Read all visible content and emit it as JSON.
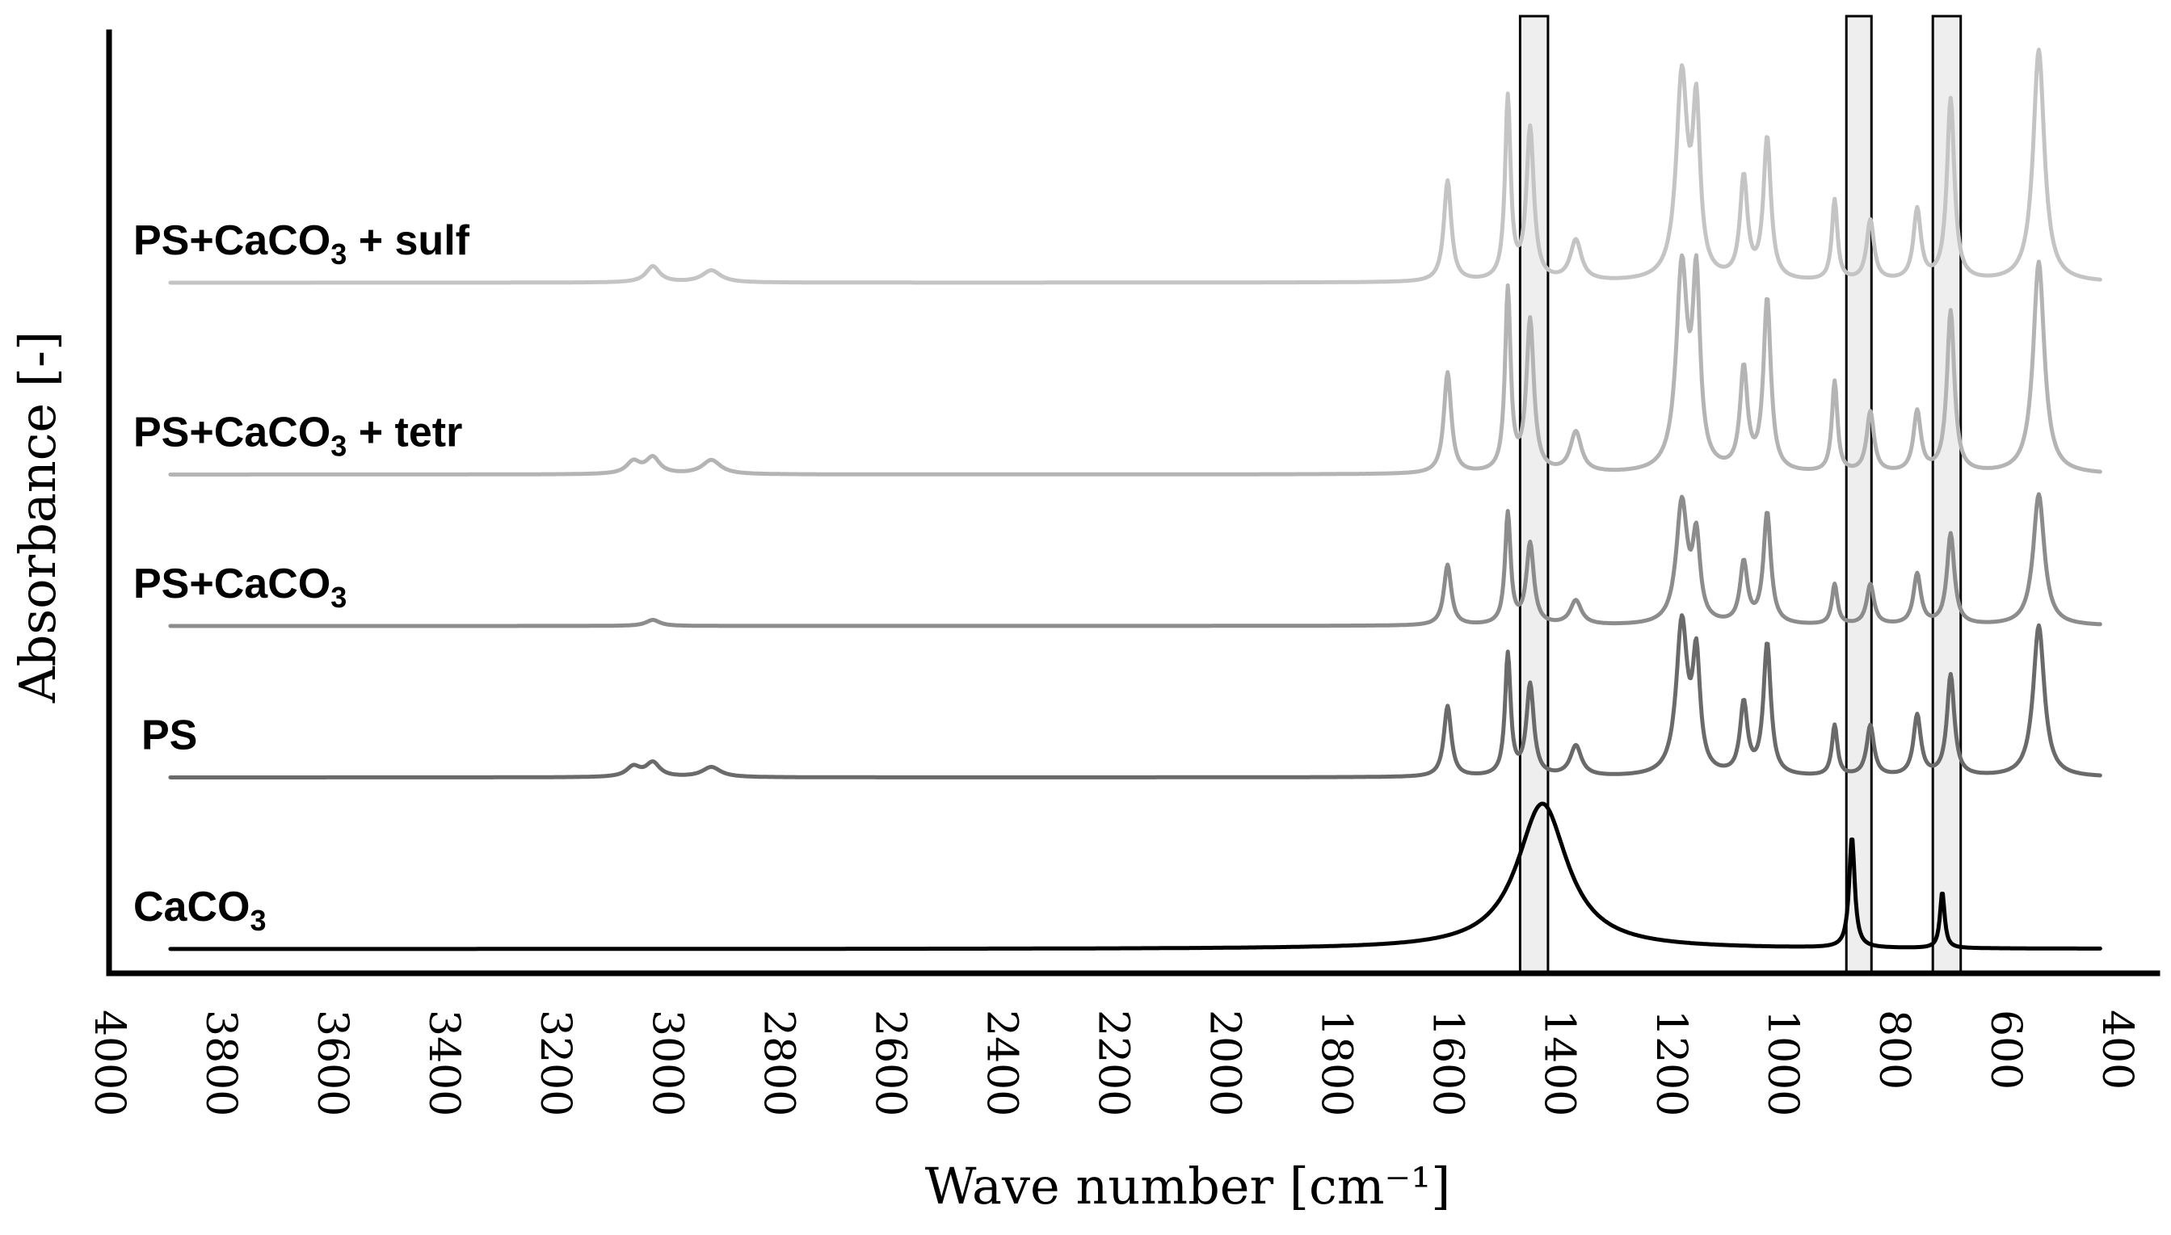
{
  "chart_data": {
    "type": "line",
    "xlabel": "Wave number [cm⁻¹]",
    "ylabel": "Absorbance [-]",
    "xlim": [
      4000,
      400
    ],
    "x_reversed": true,
    "grid": false,
    "ticks": [
      "4000",
      "3800",
      "3600",
      "3400",
      "3200",
      "3000",
      "2800",
      "2600",
      "2400",
      "2200",
      "2000",
      "1800",
      "1600",
      "1400",
      "1200",
      "1000",
      "800",
      "600",
      "400"
    ],
    "highlight_bands": [
      [
        1470,
        1420
      ],
      [
        885,
        840
      ],
      [
        730,
        680
      ]
    ],
    "series": [
      {
        "name": "PS+CaCO3 + sulf",
        "label_main": "PS+CaCO",
        "label_sub": "3",
        "label_tail": " + sulf",
        "color": "#c4c4c4",
        "offset": 3.3,
        "peaks": [
          [
            3025,
            0.08,
            15
          ],
          [
            2920,
            0.06,
            20
          ],
          [
            1600,
            0.5,
            8
          ],
          [
            1492,
            0.9,
            6
          ],
          [
            1452,
            0.75,
            8
          ],
          [
            1370,
            0.2,
            12
          ],
          [
            1180,
            1.0,
            12
          ],
          [
            1154,
            0.8,
            8
          ],
          [
            1069,
            0.5,
            8
          ],
          [
            1027,
            0.7,
            8
          ],
          [
            906,
            0.4,
            6
          ],
          [
            842,
            0.3,
            8
          ],
          [
            758,
            0.35,
            8
          ],
          [
            698,
            0.9,
            8
          ],
          [
            540,
            1.15,
            12
          ]
        ]
      },
      {
        "name": "PS+CaCO3 + tetr",
        "label_main": "PS+CaCO",
        "label_sub": "3",
        "label_tail": " + tetr",
        "color": "#b4b4b4",
        "offset": 2.35,
        "peaks": [
          [
            3060,
            0.06,
            15
          ],
          [
            3025,
            0.08,
            15
          ],
          [
            2920,
            0.07,
            20
          ],
          [
            1600,
            0.5,
            8
          ],
          [
            1492,
            0.9,
            6
          ],
          [
            1452,
            0.75,
            8
          ],
          [
            1370,
            0.2,
            12
          ],
          [
            1180,
            1.0,
            12
          ],
          [
            1154,
            0.9,
            8
          ],
          [
            1069,
            0.5,
            8
          ],
          [
            1027,
            0.85,
            8
          ],
          [
            906,
            0.45,
            6
          ],
          [
            842,
            0.3,
            8
          ],
          [
            758,
            0.3,
            8
          ],
          [
            698,
            0.8,
            8
          ],
          [
            540,
            1.05,
            12
          ]
        ]
      },
      {
        "name": "PS+CaCO3",
        "label_main": "PS+CaCO",
        "label_sub": "3",
        "label_tail": "",
        "color": "#8c8c8c",
        "offset": 1.6,
        "peaks": [
          [
            3025,
            0.03,
            15
          ],
          [
            1600,
            0.3,
            8
          ],
          [
            1492,
            0.55,
            6
          ],
          [
            1452,
            0.4,
            8
          ],
          [
            1370,
            0.12,
            12
          ],
          [
            1180,
            0.6,
            12
          ],
          [
            1154,
            0.4,
            8
          ],
          [
            1069,
            0.3,
            8
          ],
          [
            1027,
            0.55,
            8
          ],
          [
            906,
            0.2,
            6
          ],
          [
            842,
            0.2,
            8
          ],
          [
            758,
            0.25,
            8
          ],
          [
            698,
            0.45,
            8
          ],
          [
            540,
            0.65,
            12
          ]
        ]
      },
      {
        "name": "PS",
        "label_main": "PS",
        "label_sub": "",
        "label_tail": "",
        "color": "#6a6a6a",
        "offset": 0.85,
        "peaks": [
          [
            3060,
            0.05,
            15
          ],
          [
            3025,
            0.07,
            15
          ],
          [
            2920,
            0.05,
            20
          ],
          [
            1600,
            0.35,
            8
          ],
          [
            1492,
            0.6,
            6
          ],
          [
            1452,
            0.45,
            8
          ],
          [
            1370,
            0.15,
            12
          ],
          [
            1180,
            0.75,
            12
          ],
          [
            1154,
            0.55,
            8
          ],
          [
            1069,
            0.35,
            8
          ],
          [
            1027,
            0.65,
            8
          ],
          [
            906,
            0.25,
            6
          ],
          [
            842,
            0.25,
            8
          ],
          [
            758,
            0.3,
            8
          ],
          [
            698,
            0.5,
            8
          ],
          [
            540,
            0.75,
            12
          ]
        ]
      },
      {
        "name": "CaCO3",
        "label_main": "CaCO",
        "label_sub": "3",
        "label_tail": "",
        "color": "#000000",
        "offset": 0.0,
        "peaks": [
          [
            1430,
            0.72,
            55
          ],
          [
            875,
            0.55,
            6
          ],
          [
            713,
            0.28,
            5
          ]
        ]
      }
    ]
  }
}
